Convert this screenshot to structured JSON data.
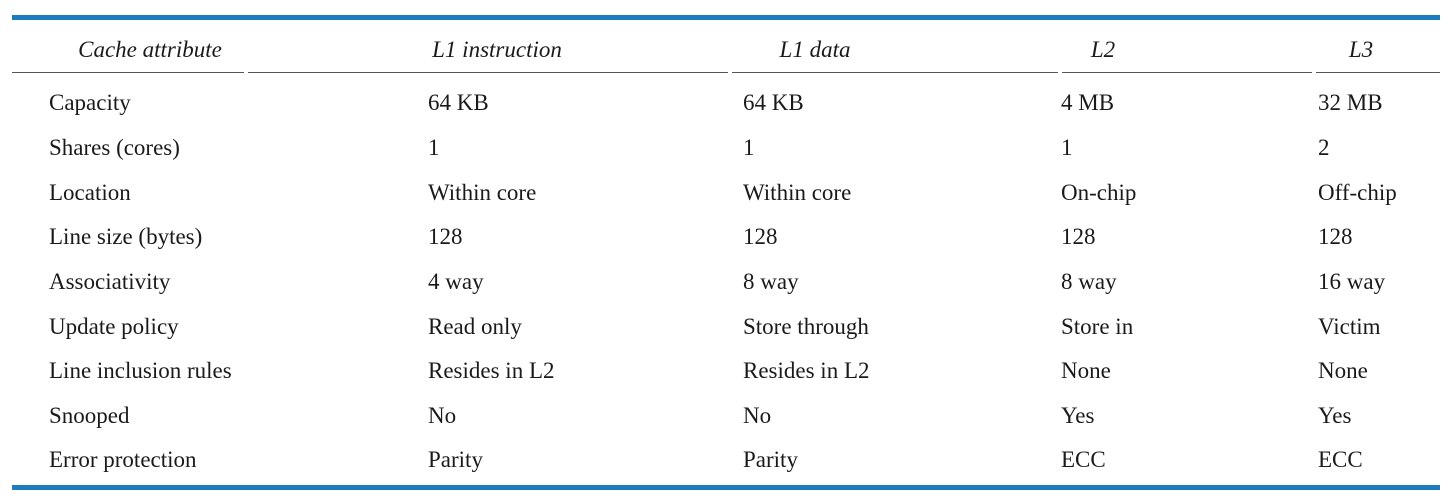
{
  "table": {
    "headers": [
      "Cache attribute",
      "L1 instruction",
      "L1 data",
      "L2",
      "L3"
    ],
    "rows": [
      [
        "Capacity",
        "64 KB",
        "64 KB",
        "4 MB",
        "32 MB"
      ],
      [
        "Shares (cores)",
        "1",
        "1",
        "1",
        "2"
      ],
      [
        "Location",
        "Within core",
        "Within core",
        "On-chip",
        "Off-chip"
      ],
      [
        "Line size (bytes)",
        "128",
        "128",
        "128",
        "128"
      ],
      [
        "Associativity",
        "4 way",
        "8 way",
        "8 way",
        "16 way"
      ],
      [
        "Update policy",
        "Read only",
        "Store through",
        "Store in",
        "Victim"
      ],
      [
        "Line inclusion rules",
        "Resides in L2",
        "Resides in L2",
        "None",
        "None"
      ],
      [
        "Snooped",
        "No",
        "No",
        "Yes",
        "Yes"
      ],
      [
        "Error protection",
        "Parity",
        "Parity",
        "ECC",
        "ECC"
      ]
    ]
  },
  "colors": {
    "rule": "#1d7bbf",
    "text": "#1a1a1a"
  }
}
